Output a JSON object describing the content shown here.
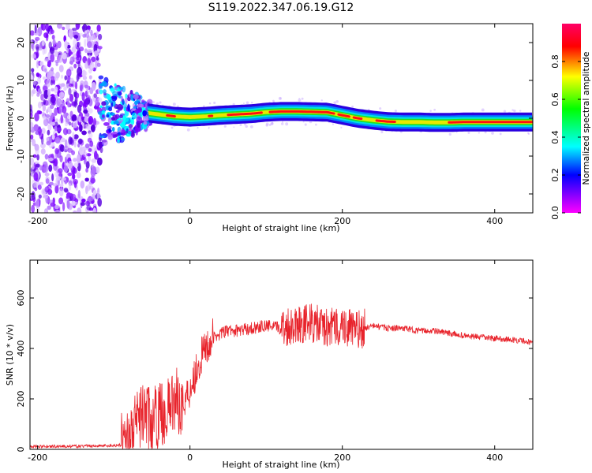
{
  "title": "S119.2022.347.06.19.G12",
  "chart_data": [
    {
      "type": "heatmap",
      "xlabel": "Height of straight line (km)",
      "ylabel": "Frequency (Hz)",
      "xlim": [
        -210,
        450
      ],
      "ylim": [
        -25,
        25
      ],
      "x_ticks": [
        -200,
        0,
        200,
        400
      ],
      "y_ticks": [
        -20,
        -10,
        0,
        10,
        20
      ],
      "colorbar": {
        "label": "Normalized spectral amplitude",
        "range": [
          0,
          1
        ],
        "ticks": [
          "0.0",
          "0.2",
          "0.4",
          "0.6",
          "0.8"
        ],
        "colors": [
          "#ff00ff",
          "#0000ff",
          "#00ffff",
          "#00ff00",
          "#ffff00",
          "#ff0000",
          "#ff0066"
        ]
      },
      "ridge": {
        "x": [
          -60,
          -40,
          -20,
          0,
          20,
          40,
          60,
          80,
          100,
          120,
          140,
          160,
          180,
          200,
          220,
          240,
          260,
          280,
          300,
          320,
          340,
          360,
          380,
          400,
          420,
          450
        ],
        "freq": [
          1.5,
          1.0,
          0.5,
          0.3,
          0.5,
          0.8,
          1.0,
          1.2,
          1.6,
          1.8,
          1.8,
          1.7,
          1.6,
          0.8,
          0.0,
          -0.5,
          -0.9,
          -1.0,
          -1.0,
          -1.1,
          -1.1,
          -1.0,
          -1.0,
          -1.0,
          -1.0,
          -1.0
        ]
      },
      "grid": false
    },
    {
      "type": "line",
      "xlabel": "Height of straight line (km)",
      "ylabel": "SNR (10 * v/v)",
      "xlim": [
        -210,
        450
      ],
      "ylim": [
        0,
        750
      ],
      "x_ticks": [
        -200,
        0,
        200,
        400
      ],
      "y_ticks": [
        0,
        200,
        400,
        600
      ],
      "series": [
        {
          "color": "#e8232b",
          "x": [
            -210,
            -180,
            -150,
            -120,
            -100,
            -90,
            -80,
            -70,
            -60,
            -50,
            -40,
            -30,
            -20,
            -10,
            0,
            10,
            20,
            30,
            40,
            50,
            60,
            80,
            100,
            120,
            140,
            160,
            180,
            200,
            220,
            240,
            260,
            280,
            300,
            320,
            340,
            360,
            380,
            400,
            420,
            440,
            450
          ],
          "y": [
            10,
            12,
            12,
            14,
            15,
            18,
            40,
            100,
            150,
            110,
            140,
            150,
            200,
            180,
            240,
            330,
            400,
            440,
            460,
            470,
            470,
            480,
            490,
            480,
            500,
            500,
            480,
            490,
            470,
            490,
            480,
            480,
            470,
            470,
            460,
            450,
            445,
            440,
            435,
            430,
            420
          ]
        }
      ],
      "grid": false
    }
  ]
}
